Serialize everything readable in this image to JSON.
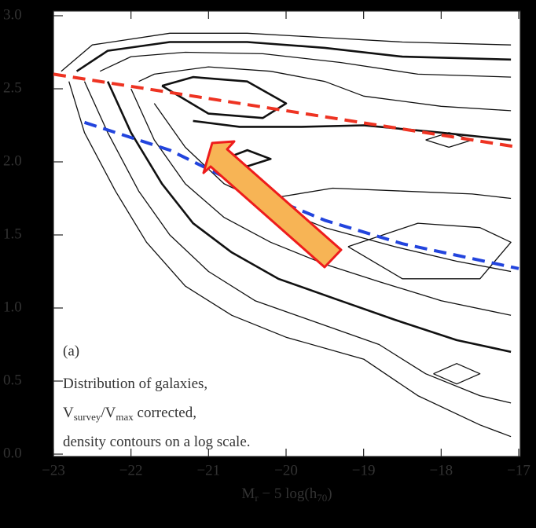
{
  "chart_data": {
    "type": "contour",
    "xlabel": [
      "M",
      "r",
      " − 5 log(h",
      "70",
      ")"
    ],
    "annotation": {
      "label": "(a)",
      "lines": [
        [
          "Distribution of galaxies,"
        ],
        [
          "V",
          "survey",
          "/V",
          "max",
          " corrected,"
        ],
        [
          "density contours on a log scale."
        ]
      ]
    },
    "xlim": [
      -23,
      -17
    ],
    "ylim": [
      0,
      3
    ],
    "xticks": [
      {
        "value": -23,
        "label": "−23"
      },
      {
        "value": -22,
        "label": "−22"
      },
      {
        "value": -21,
        "label": "−21"
      },
      {
        "value": -20,
        "label": "−20"
      },
      {
        "value": -19,
        "label": "−19"
      },
      {
        "value": -18,
        "label": "−18"
      },
      {
        "value": -17,
        "label": "−17"
      }
    ],
    "yticks": [
      {
        "value": 0,
        "label": "0.0"
      },
      0.5,
      {
        "value": 1,
        "label": "1.0"
      },
      1.5,
      {
        "value": 2,
        "label": "2.0"
      },
      2.5,
      {
        "value": 3,
        "label": "3.0"
      }
    ],
    "contour_color": "#111",
    "contours": [
      {
        "x": [
          -22.9,
          -22.5,
          -21.5,
          -20.5,
          -19.5,
          -18.5,
          -17.1
        ],
        "y": [
          2.62,
          2.8,
          2.88,
          2.88,
          2.85,
          2.82,
          2.8
        ]
      },
      {
        "x": [
          -22.7,
          -22.3,
          -21.5,
          -20.5,
          -19.5,
          -18.5,
          -17.1
        ],
        "y": [
          2.62,
          2.76,
          2.82,
          2.82,
          2.78,
          2.72,
          2.7
        ]
      },
      {
        "x": [
          -22.4,
          -22.0,
          -21.3,
          -20.3,
          -19.3,
          -18.3,
          -17.1
        ],
        "y": [
          2.62,
          2.72,
          2.75,
          2.74,
          2.68,
          2.6,
          2.58
        ]
      },
      {
        "x": [
          -21.9,
          -21.7,
          -21.0,
          -20.2,
          -19.5,
          -19.0,
          -18.0,
          -17.1
        ],
        "y": [
          2.55,
          2.6,
          2.65,
          2.62,
          2.55,
          2.45,
          2.38,
          2.35
        ]
      },
      {
        "x": [
          -21.6,
          -21.2,
          -20.5,
          -20.0,
          -20.3,
          -21.0,
          -21.6
        ],
        "y": [
          2.52,
          2.58,
          2.55,
          2.4,
          2.3,
          2.33,
          2.52
        ]
      },
      {
        "x": [
          -22.8,
          -22.6,
          -22.2,
          -21.8,
          -21.3,
          -20.7,
          -20.0,
          -19.0,
          -18.3,
          -17.5,
          -17.1
        ],
        "y": [
          2.55,
          2.2,
          1.8,
          1.45,
          1.15,
          0.95,
          0.8,
          0.65,
          0.4,
          0.2,
          0.12
        ]
      },
      {
        "x": [
          -22.6,
          -22.3,
          -21.9,
          -21.5,
          -21.0,
          -20.4,
          -19.6,
          -18.8,
          -18.2,
          -17.5,
          -17.1
        ],
        "y": [
          2.55,
          2.2,
          1.8,
          1.5,
          1.25,
          1.05,
          0.9,
          0.75,
          0.55,
          0.4,
          0.35
        ]
      },
      {
        "x": [
          -22.3,
          -22.0,
          -21.6,
          -21.2,
          -20.7,
          -20.1,
          -19.3,
          -18.6,
          -17.8,
          -17.1
        ],
        "y": [
          2.55,
          2.2,
          1.85,
          1.58,
          1.38,
          1.2,
          1.05,
          0.92,
          0.78,
          0.7
        ]
      },
      {
        "x": [
          -22.0,
          -21.7,
          -21.3,
          -20.8,
          -20.2,
          -19.5,
          -18.8,
          -18.0,
          -17.1
        ],
        "y": [
          2.5,
          2.15,
          1.85,
          1.62,
          1.45,
          1.3,
          1.18,
          1.05,
          0.95
        ]
      },
      {
        "x": [
          -21.7,
          -21.3,
          -20.8,
          -20.2,
          -19.5,
          -18.6,
          -17.8,
          -17.1
        ],
        "y": [
          2.4,
          2.1,
          1.85,
          1.7,
          1.55,
          1.42,
          1.32,
          1.25
        ]
      },
      {
        "x": [
          -21.2,
          -20.6,
          -19.8,
          -19.0,
          -18.0,
          -17.1
        ],
        "y": [
          2.28,
          2.24,
          2.24,
          2.25,
          2.2,
          2.15
        ]
      },
      {
        "x": [
          -20.2,
          -19.4,
          -18.5,
          -17.6,
          -17.1
        ],
        "y": [
          1.75,
          1.82,
          1.8,
          1.78,
          1.75
        ]
      },
      {
        "x": [
          -19.2,
          -18.3,
          -17.5,
          -17.1,
          -17.5,
          -18.5,
          -19.2
        ],
        "y": [
          1.42,
          1.58,
          1.55,
          1.45,
          1.2,
          1.2,
          1.42
        ]
      },
      {
        "x": [
          -20.8,
          -20.5,
          -20.2,
          -20.5,
          -20.8
        ],
        "y": [
          2.02,
          2.08,
          2.02,
          1.97,
          2.02
        ]
      },
      {
        "x": [
          -18.1,
          -17.8,
          -17.5,
          -17.8,
          -18.1
        ],
        "y": [
          0.55,
          0.62,
          0.55,
          0.48,
          0.55
        ]
      },
      {
        "x": [
          -18.2,
          -17.9,
          -17.6,
          -17.9,
          -18.2
        ],
        "y": [
          2.15,
          2.2,
          2.15,
          2.1,
          2.15
        ]
      }
    ],
    "series": [
      {
        "color": "#ee3322",
        "x": [
          -23,
          -17
        ],
        "y": [
          2.6,
          2.1
        ]
      },
      {
        "color": "#2244dd",
        "x": [
          -22.6,
          -21.5,
          -20.5,
          -19.5,
          -18.5,
          -17
        ],
        "y": [
          2.27,
          2.08,
          1.82,
          1.6,
          1.44,
          1.27
        ]
      }
    ]
  }
}
